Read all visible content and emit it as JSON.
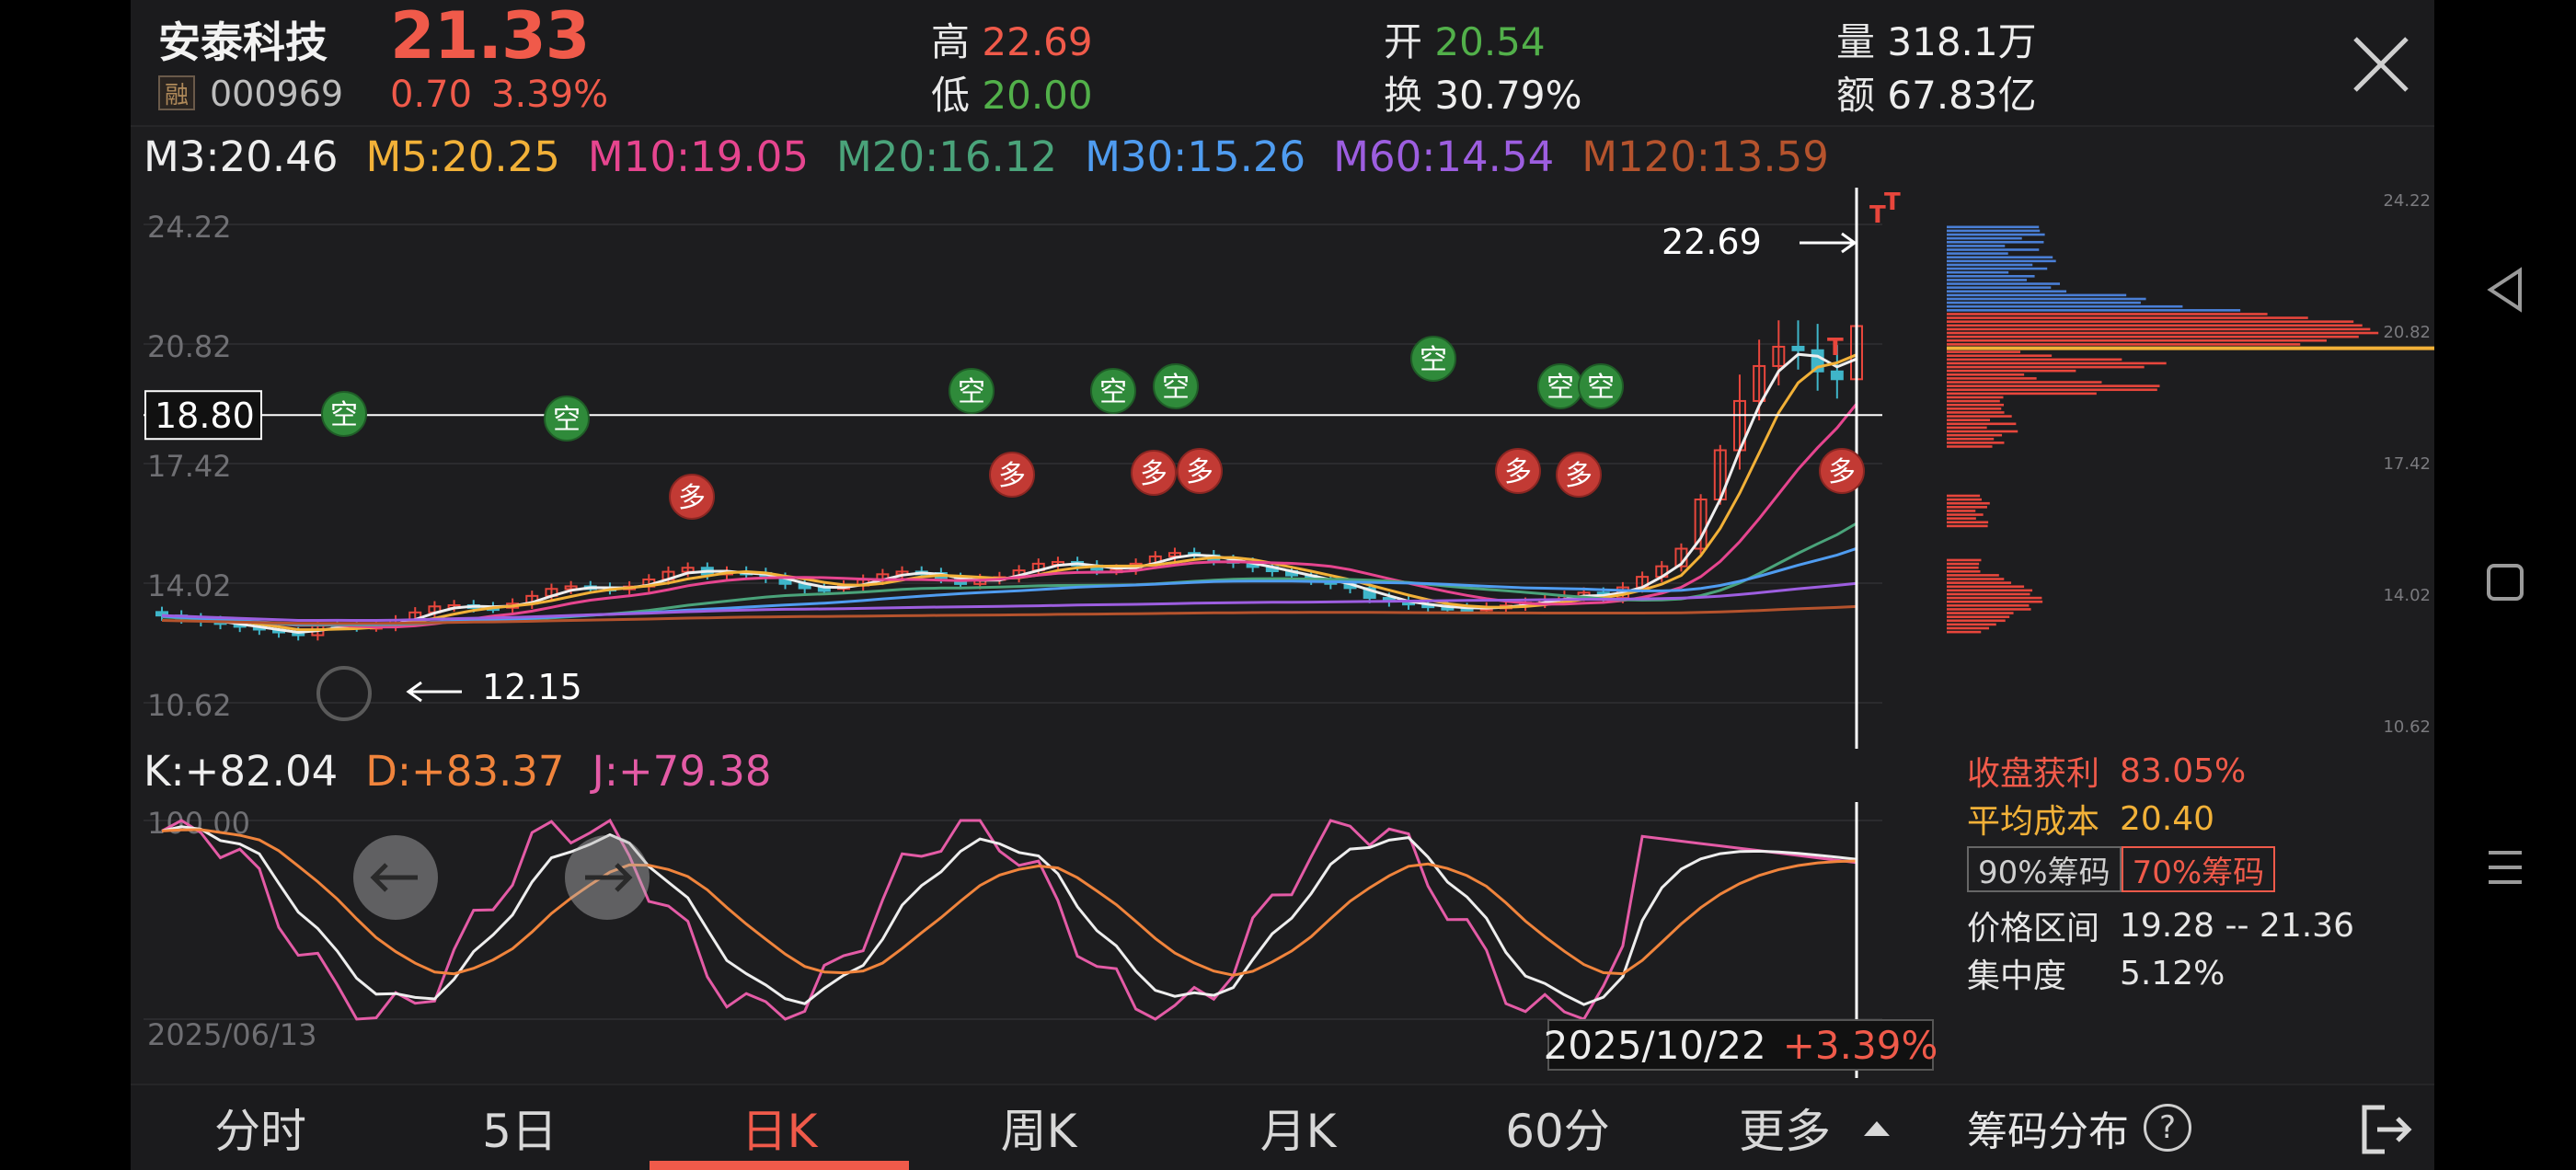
{
  "header": {
    "name": "安泰科技",
    "rong": "融",
    "code": "000969",
    "price": "21.33",
    "change": "0.70",
    "change_pct": "3.39%",
    "high_label": "高",
    "high": "22.69",
    "low_label": "低",
    "low": "20.00",
    "open_label": "开",
    "open": "20.54",
    "turnover_label": "换",
    "turnover": "30.79%",
    "volume_label": "量",
    "volume": "318.1万",
    "amount_label": "额",
    "amount": "67.83亿"
  },
  "ma": [
    {
      "label": "M3:20.46",
      "color": "#eeeeee"
    },
    {
      "label": "M5:20.25",
      "color": "#f2b138"
    },
    {
      "label": "M10:19.05",
      "color": "#e6458f"
    },
    {
      "label": "M20:16.12",
      "color": "#4aa37a"
    },
    {
      "label": "M30:15.26",
      "color": "#4f9cf0"
    },
    {
      "label": "M60:14.54",
      "color": "#9d5ee0"
    },
    {
      "label": "M120:13.59",
      "color": "#b5532d"
    }
  ],
  "main_chart": {
    "y_ticks": [
      "24.22",
      "20.82",
      "17.42",
      "14.02",
      "10.62"
    ],
    "crosshair_price": "18.80",
    "max_label": "22.69",
    "min_label": "12.15",
    "signal_empty": "空",
    "signal_many": "多",
    "marker_t": "T"
  },
  "chips": {
    "ticks": [
      "24.22",
      "20.82",
      "17.42",
      "14.02",
      "10.62"
    ]
  },
  "kdj": {
    "k": "K:+82.04",
    "d": "D:+83.37",
    "j": "J:+79.38",
    "top_tick": "100.00",
    "start_date": "2025/06/13",
    "cursor_date": "2025/10/22",
    "cursor_pct": "+3.39%"
  },
  "chip_stats": {
    "profit_label": "收盘获利",
    "profit": "83.05%",
    "cost_label": "平均成本",
    "cost": "20.40",
    "tab90": "90%筹码",
    "tab70": "70%筹码",
    "range_label": "价格区间",
    "range": "19.28 -- 21.36",
    "conc_label": "集中度",
    "conc": "5.12%"
  },
  "tabs": [
    "分时",
    "5日",
    "日K",
    "周K",
    "月K",
    "60分",
    "更多"
  ],
  "chip_footer": {
    "label": "筹码分布",
    "help": "?"
  },
  "colors": {
    "up": "#f05a4a",
    "down": "#52b04a",
    "bg": "#1d1d1f"
  }
}
